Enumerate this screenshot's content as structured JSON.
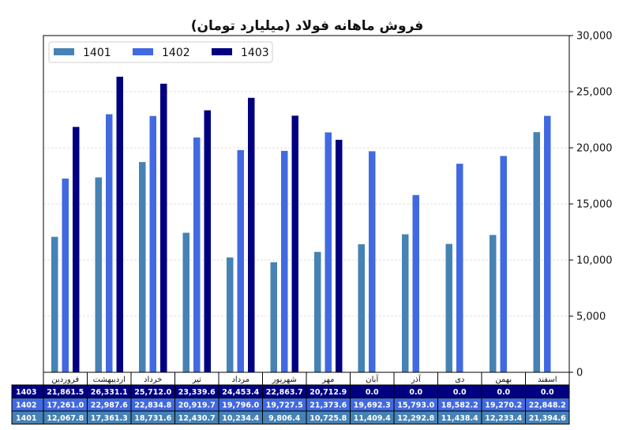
{
  "chart_data": {
    "type": "bar",
    "title": "فروش ماهانه فولاد (میلیارد تومان)",
    "xlabel": "",
    "ylabel": "",
    "ylim": [
      0,
      30000
    ],
    "y_ticks": [
      "0",
      "5,000",
      "10,000",
      "15,000",
      "20,000",
      "25,000",
      "30,000"
    ],
    "y_axis_side": "right",
    "grid": true,
    "legend_position": "top-left",
    "categories": [
      "فروردین",
      "اردیبهشت",
      "خرداد",
      "تیر",
      "مرداد",
      "شهریور",
      "مهر",
      "آبان",
      "آذر",
      "دی",
      "بهمن",
      "اسفند"
    ],
    "series": [
      {
        "name": "1401",
        "color": "#4682b4",
        "values": [
          12067.8,
          17361.3,
          18731.6,
          12430.7,
          10234.4,
          9806.4,
          10725.8,
          11409.4,
          12292.8,
          11438.4,
          12233.4,
          21394.6
        ],
        "labels": [
          "12,067.8",
          "17,361.3",
          "18,731.6",
          "12,430.7",
          "10,234.4",
          "9,806.4",
          "10,725.8",
          "11,409.4",
          "12,292.8",
          "11,438.4",
          "12,233.4",
          "21,394.6"
        ]
      },
      {
        "name": "1402",
        "color": "#4169e1",
        "values": [
          17261.0,
          22987.6,
          22834.8,
          20919.7,
          19796.0,
          19727.5,
          21373.6,
          19692.3,
          15793.0,
          18582.2,
          19270.2,
          22848.2
        ],
        "labels": [
          "17,261.0",
          "22,987.6",
          "22,834.8",
          "20,919.7",
          "19,796.0",
          "19,727.5",
          "21,373.6",
          "19,692.3",
          "15,793.0",
          "18,582.2",
          "19,270.2",
          "22,848.2"
        ]
      },
      {
        "name": "1403",
        "color": "#000080",
        "values": [
          21861.5,
          26331.1,
          25712.0,
          23339.6,
          24453.4,
          22863.7,
          20712.9,
          0,
          0,
          0,
          0,
          0
        ],
        "labels": [
          "21,861.5",
          "26,331.1",
          "25,712.0",
          "23,339.6",
          "24,453.4",
          "22,863.7",
          "20,712.9",
          "0.0",
          "0.0",
          "0.0",
          "0.0",
          "0.0"
        ]
      }
    ],
    "table_row_order": [
      "1403",
      "1402",
      "1401"
    ]
  }
}
